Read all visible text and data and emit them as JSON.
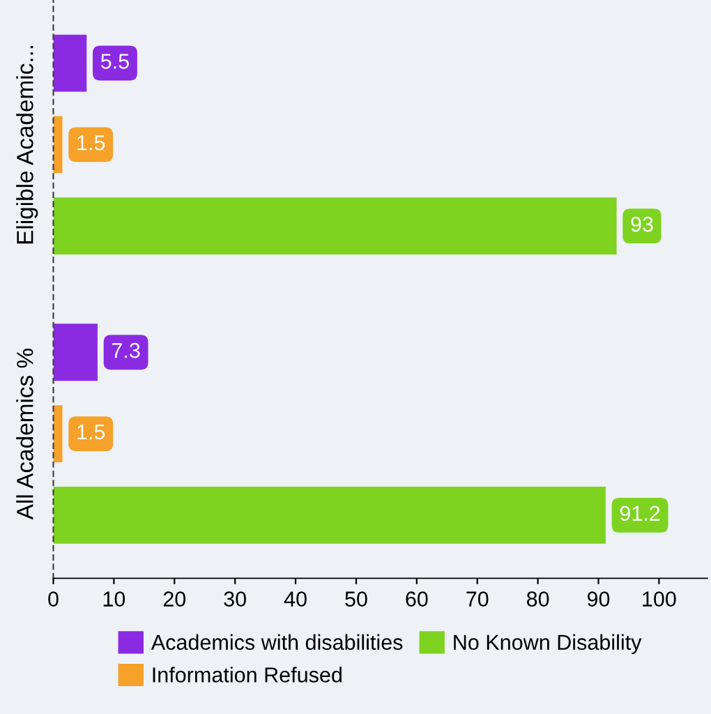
{
  "chart_data": {
    "type": "bar",
    "orientation": "horizontal",
    "categories": [
      "Eligible Academic...",
      "All Academics %"
    ],
    "series": [
      {
        "name": "Academics with disabilities",
        "color": "#8a2be2",
        "values": [
          5.5,
          7.3
        ]
      },
      {
        "name": "Information Refused",
        "color": "#f5a12a",
        "values": [
          1.5,
          1.5
        ]
      },
      {
        "name": "No Known Disability",
        "color": "#7ed321",
        "values": [
          93,
          91.2
        ]
      }
    ],
    "xlim": [
      0,
      108
    ],
    "xticks": [
      0,
      10,
      20,
      30,
      40,
      50,
      60,
      70,
      80,
      90,
      100
    ],
    "data_labels": true,
    "grid": false,
    "legend": "bottom"
  }
}
